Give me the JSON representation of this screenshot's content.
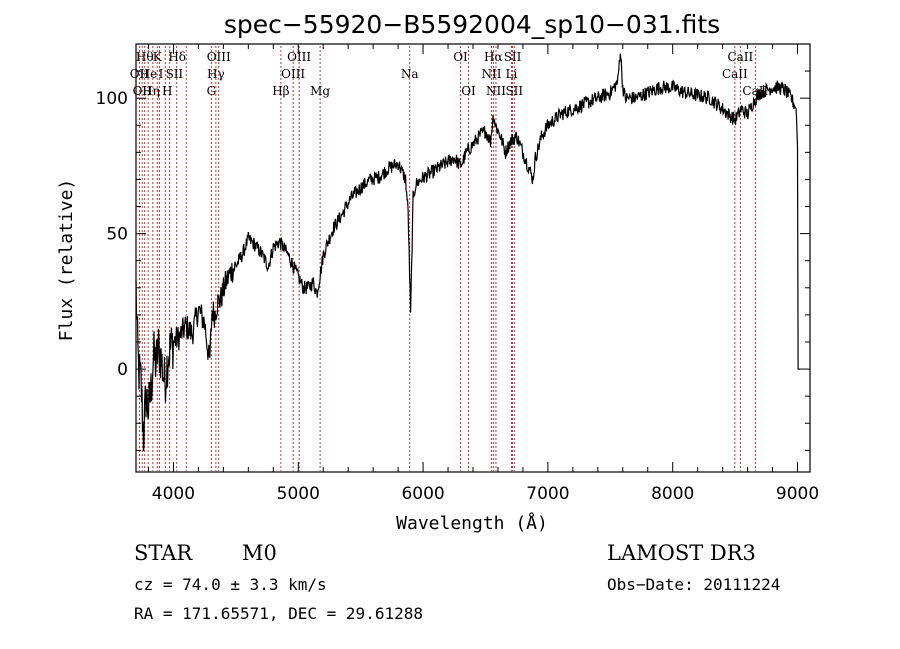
{
  "chart_data": {
    "type": "line",
    "title": "spec−55920−B5592004_sp10−031.fits",
    "xlabel": "Wavelength (Å)",
    "ylabel": "Flux (relative)",
    "xlim": [
      3700,
      9100
    ],
    "ylim": [
      -38,
      120
    ],
    "xticks": [
      4000,
      5000,
      6000,
      7000,
      8000,
      9000
    ],
    "yticks": [
      0,
      50,
      100
    ],
    "series": [
      {
        "name": "flux",
        "x": [
          3700,
          3710,
          3720,
          3740,
          3760,
          3780,
          3800,
          3820,
          3840,
          3860,
          3880,
          3900,
          3930,
          3960,
          4000,
          4050,
          4100,
          4150,
          4200,
          4250,
          4290,
          4310,
          4330,
          4350,
          4380,
          4420,
          4460,
          4500,
          4550,
          4600,
          4650,
          4700,
          4760,
          4800,
          4850,
          4880,
          4920,
          4960,
          5000,
          5040,
          5080,
          5120,
          5150,
          5180,
          5200,
          5230,
          5280,
          5350,
          5420,
          5500,
          5580,
          5650,
          5720,
          5800,
          5860,
          5880,
          5900,
          5920,
          5940,
          5980,
          6050,
          6150,
          6250,
          6300,
          6350,
          6400,
          6450,
          6500,
          6540,
          6563,
          6580,
          6620,
          6660,
          6700,
          6750,
          6800,
          6850,
          6880,
          6900,
          6950,
          7000,
          7100,
          7200,
          7300,
          7400,
          7500,
          7560,
          7580,
          7600,
          7620,
          7700,
          7800,
          7900,
          8000,
          8100,
          8200,
          8300,
          8400,
          8500,
          8550,
          8600,
          8650,
          8700,
          8800,
          8850,
          8900,
          8950,
          8990,
          9000,
          9005
        ],
        "values": [
          30,
          12,
          0,
          -5,
          -25,
          -10,
          -15,
          -8,
          5,
          2,
          8,
          4,
          -5,
          6,
          10,
          12,
          16,
          13,
          22,
          17,
          2,
          22,
          20,
          24,
          26,
          32,
          36,
          38,
          42,
          48,
          46,
          43,
          38,
          45,
          47,
          45,
          42,
          38,
          34,
          30,
          30,
          32,
          28,
          36,
          42,
          46,
          52,
          57,
          63,
          67,
          70,
          71,
          74,
          76,
          70,
          58,
          20,
          63,
          68,
          70,
          72,
          75,
          78,
          75,
          80,
          83,
          86,
          88,
          84,
          94,
          90,
          86,
          80,
          84,
          86,
          80,
          74,
          70,
          78,
          86,
          90,
          94,
          96,
          98,
          100,
          102,
          106,
          118,
          104,
          100,
          100,
          102,
          104,
          104,
          102,
          101,
          100,
          96,
          92,
          96,
          94,
          99,
          102,
          104,
          104,
          103,
          100,
          96,
          82,
          0
        ]
      }
    ],
    "line_labels": [
      {
        "wl": 3727,
        "text": "OII",
        "row": 2
      },
      {
        "wl": 3750,
        "text": "OII",
        "row": 3
      },
      {
        "wl": 3770,
        "text": "Hθ",
        "row": 1
      },
      {
        "wl": 3800,
        "text": "He",
        "row": 2
      },
      {
        "wl": 3820,
        "text": "Hη",
        "row": 3
      },
      {
        "wl": 3870,
        "text": "K",
        "row": 1
      },
      {
        "wl": 3900,
        "text": "I",
        "row": 2
      },
      {
        "wl": 3950,
        "text": "H",
        "row": 3
      },
      {
        "wl": 3970,
        "text": "S",
        "row": 2
      },
      {
        "wl": 4030,
        "text": "Hδ",
        "row": 1
      },
      {
        "wl": 4040,
        "text": "II",
        "row": 2
      },
      {
        "wl": 4363,
        "text": "OIII",
        "row": 1
      },
      {
        "wl": 4340,
        "text": "Hγ",
        "row": 2
      },
      {
        "wl": 4304,
        "text": "G",
        "row": 3
      },
      {
        "wl": 4861,
        "text": "Hβ",
        "row": 3
      },
      {
        "wl": 4959,
        "text": "OIII",
        "row": 2
      },
      {
        "wl": 5007,
        "text": "OIII",
        "row": 1
      },
      {
        "wl": 5175,
        "text": "Mg",
        "row": 3
      },
      {
        "wl": 5893,
        "text": "Na",
        "row": 2
      },
      {
        "wl": 6300,
        "text": "OI",
        "row": 1
      },
      {
        "wl": 6364,
        "text": "OI",
        "row": 3
      },
      {
        "wl": 6563,
        "text": "Hα",
        "row": 1
      },
      {
        "wl": 6548,
        "text": "NII",
        "row": 2
      },
      {
        "wl": 6584,
        "text": "NII",
        "row": 3
      },
      {
        "wl": 6717,
        "text": "SII",
        "row": 1
      },
      {
        "wl": 6708,
        "text": "Li",
        "row": 2
      },
      {
        "wl": 6731,
        "text": "SII",
        "row": 3
      },
      {
        "wl": 8542,
        "text": "CaII",
        "row": 1
      },
      {
        "wl": 8498,
        "text": "CaII",
        "row": 2
      },
      {
        "wl": 8662,
        "text": "CaII",
        "row": 3
      }
    ],
    "line_markers": [
      3727,
      3750,
      3770,
      3797,
      3835,
      3870,
      3889,
      3934,
      3970,
      4026,
      4102,
      4304,
      4340,
      4363,
      4861,
      4959,
      5007,
      5175,
      5893,
      6300,
      6364,
      6548,
      6563,
      6584,
      6708,
      6717,
      6731,
      8498,
      8542,
      8662
    ]
  },
  "info": {
    "class_label": "STAR",
    "subclass": "M0",
    "survey": "LAMOST DR3",
    "cz": "cz = 74.0 ± 3.3 km/s",
    "obs_date": "Obs−Date: 20111224",
    "coords": "RA = 171.65571, DEC =  29.61288"
  },
  "colors": {
    "marker": "#b22222",
    "spectrum": "#000000"
  }
}
